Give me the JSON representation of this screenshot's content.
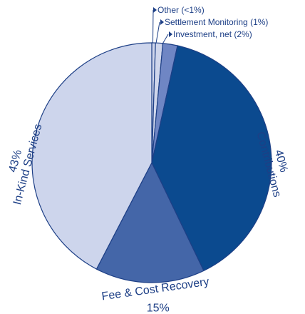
{
  "chart_data": {
    "type": "pie",
    "categories": [
      "Other",
      "Settlement Monitoring",
      "Investment, net",
      "Contributions",
      "Fee & Cost Recovery",
      "In-Kind Services"
    ],
    "values": [
      0.5,
      1,
      2,
      40,
      15,
      43
    ],
    "value_labels": [
      "(<1%)",
      "(1%)",
      "(2%)",
      "40%",
      "15%",
      "43%"
    ],
    "colors": [
      "#cfd6ec",
      "#cfd6ec",
      "#6f86c4",
      "#0b4a8f",
      "#4466a8",
      "#cdd5ec"
    ]
  }
}
